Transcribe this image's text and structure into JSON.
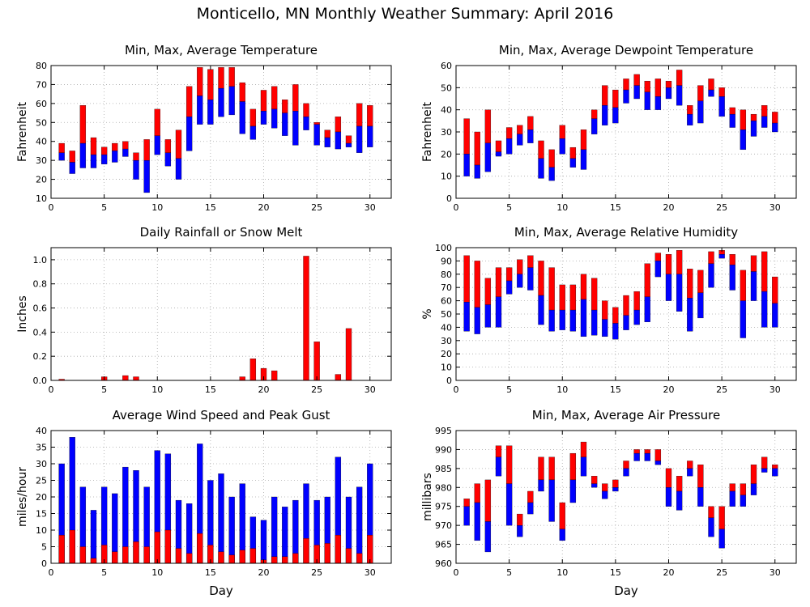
{
  "page": {
    "title": "Monticello, MN Monthly Weather Summary: April 2016"
  },
  "colors": {
    "upper": "#ff0000",
    "lower": "#0000ff",
    "grid": "#aaaaaa",
    "axis": "#000000"
  },
  "chart_data": [
    {
      "id": "temperature",
      "type": "bar",
      "style": "range",
      "title": "Min, Max, Average Temperature",
      "xlabel": "",
      "ylabel": "Fahrenheit",
      "xlim": [
        0,
        32
      ],
      "ylim": [
        10,
        80
      ],
      "xticks": [
        0,
        5,
        10,
        15,
        20,
        25,
        30
      ],
      "yticks": [
        10,
        20,
        30,
        40,
        50,
        60,
        70,
        80
      ],
      "grid": true,
      "x": [
        1,
        2,
        3,
        4,
        5,
        6,
        7,
        8,
        9,
        10,
        11,
        12,
        13,
        14,
        15,
        16,
        17,
        18,
        19,
        20,
        21,
        22,
        23,
        24,
        25,
        26,
        27,
        28,
        29,
        30
      ],
      "min": [
        30,
        23,
        26,
        26,
        28,
        29,
        32,
        20,
        13,
        33,
        27,
        20,
        35,
        49,
        49,
        53,
        54,
        44,
        41,
        49,
        47,
        43,
        38,
        46,
        38,
        37,
        36,
        37,
        34,
        37
      ],
      "avg": [
        34,
        29,
        39,
        33,
        33,
        35,
        36,
        30,
        30,
        43,
        34,
        31,
        53,
        64,
        62,
        68,
        69,
        61,
        48,
        56,
        57,
        55,
        56,
        53,
        49,
        42,
        45,
        39,
        48,
        48
      ],
      "max": [
        39,
        35,
        59,
        42,
        37,
        39,
        40,
        34,
        41,
        57,
        41,
        46,
        69,
        79,
        78,
        79,
        79,
        71,
        57,
        67,
        69,
        62,
        70,
        60,
        50,
        46,
        53,
        43,
        60,
        59
      ]
    },
    {
      "id": "dewpoint",
      "type": "bar",
      "style": "range",
      "title": "Min, Max, Average Dewpoint Temperature",
      "xlabel": "",
      "ylabel": "Fahrenheit",
      "xlim": [
        0,
        32
      ],
      "ylim": [
        0,
        60
      ],
      "xticks": [
        0,
        5,
        10,
        15,
        20,
        25,
        30
      ],
      "yticks": [
        0,
        10,
        20,
        30,
        40,
        50,
        60
      ],
      "grid": true,
      "x": [
        1,
        2,
        3,
        4,
        5,
        6,
        7,
        8,
        9,
        10,
        11,
        12,
        13,
        14,
        15,
        16,
        17,
        18,
        19,
        20,
        21,
        22,
        23,
        24,
        25,
        26,
        27,
        28,
        29,
        30
      ],
      "min": [
        10,
        9,
        12,
        19,
        20,
        24,
        25,
        9,
        8,
        20,
        14,
        13,
        29,
        33,
        34,
        43,
        45,
        40,
        40,
        45,
        42,
        33,
        34,
        46,
        37,
        32,
        22,
        28,
        32,
        30
      ],
      "avg": [
        20,
        15,
        25,
        21,
        27,
        29,
        31,
        18,
        14,
        27,
        18,
        22,
        36,
        42,
        41,
        49,
        51,
        48,
        46,
        50,
        51,
        38,
        44,
        49,
        46,
        38,
        31,
        35,
        37,
        34
      ],
      "max": [
        36,
        30,
        40,
        26,
        32,
        33,
        37,
        26,
        22,
        33,
        23,
        31,
        40,
        51,
        49,
        54,
        56,
        53,
        54,
        53,
        58,
        42,
        51,
        54,
        50,
        41,
        40,
        38,
        42,
        39
      ]
    },
    {
      "id": "rainfall",
      "type": "bar",
      "style": "single",
      "title": "Daily Rainfall or Snow Melt",
      "xlabel": "",
      "ylabel": "Inches",
      "xlim": [
        0,
        32
      ],
      "ylim": [
        0,
        1.1
      ],
      "xticks": [
        0,
        5,
        10,
        15,
        20,
        25,
        30
      ],
      "yticks": [
        0,
        0.2,
        0.4,
        0.6,
        0.8,
        1
      ],
      "ytick_labels": [
        "0.0",
        "0.2",
        "0.4",
        "0.6",
        "0.8",
        "1.0"
      ],
      "grid": true,
      "x": [
        1,
        2,
        3,
        4,
        5,
        6,
        7,
        8,
        9,
        10,
        11,
        12,
        13,
        14,
        15,
        16,
        17,
        18,
        19,
        20,
        21,
        22,
        23,
        24,
        25,
        26,
        27,
        28,
        29,
        30
      ],
      "values": [
        0.01,
        0,
        0,
        0,
        0.03,
        0,
        0.04,
        0.03,
        0,
        0,
        0,
        0,
        0,
        0,
        0,
        0,
        0,
        0.03,
        0.18,
        0.1,
        0.08,
        0,
        0,
        1.03,
        0.32,
        0,
        0.05,
        0.43,
        0,
        0
      ]
    },
    {
      "id": "humidity",
      "type": "bar",
      "style": "range",
      "title": "Min, Max, Average Relative Humidity",
      "xlabel": "",
      "ylabel": "%",
      "xlim": [
        0,
        32
      ],
      "ylim": [
        0,
        100
      ],
      "xticks": [
        0,
        5,
        10,
        15,
        20,
        25,
        30
      ],
      "yticks": [
        0,
        10,
        20,
        30,
        40,
        50,
        60,
        70,
        80,
        90,
        100
      ],
      "grid": true,
      "x": [
        1,
        2,
        3,
        4,
        5,
        6,
        7,
        8,
        9,
        10,
        11,
        12,
        13,
        14,
        15,
        16,
        17,
        18,
        19,
        20,
        21,
        22,
        23,
        24,
        25,
        26,
        27,
        28,
        29,
        30
      ],
      "min": [
        37,
        35,
        40,
        40,
        65,
        70,
        68,
        42,
        37,
        38,
        37,
        33,
        34,
        33,
        31,
        38,
        42,
        44,
        78,
        60,
        52,
        37,
        47,
        70,
        92,
        68,
        32,
        60,
        40,
        40
      ],
      "avg": [
        59,
        55,
        57,
        63,
        75,
        80,
        85,
        64,
        53,
        53,
        53,
        61,
        53,
        46,
        43,
        49,
        53,
        63,
        90,
        80,
        80,
        62,
        66,
        88,
        95,
        87,
        60,
        82,
        67,
        58
      ],
      "max": [
        94,
        90,
        77,
        85,
        85,
        91,
        94,
        90,
        85,
        72,
        72,
        80,
        77,
        60,
        55,
        64,
        67,
        88,
        96,
        95,
        98,
        84,
        83,
        97,
        98,
        95,
        83,
        94,
        97,
        78
      ]
    },
    {
      "id": "wind",
      "type": "bar",
      "style": "wind",
      "title": "Average Wind Speed and Peak Gust",
      "xlabel": "Day",
      "ylabel": "miles/hour",
      "xlim": [
        0,
        32
      ],
      "ylim": [
        0,
        40
      ],
      "xticks": [
        0,
        5,
        10,
        15,
        20,
        25,
        30
      ],
      "yticks": [
        0,
        5,
        10,
        15,
        20,
        25,
        30,
        35,
        40
      ],
      "grid": true,
      "x": [
        1,
        2,
        3,
        4,
        5,
        6,
        7,
        8,
        9,
        10,
        11,
        12,
        13,
        14,
        15,
        16,
        17,
        18,
        19,
        20,
        21,
        22,
        23,
        24,
        25,
        26,
        27,
        28,
        29,
        30
      ],
      "average_speed": [
        8.5,
        10,
        5,
        1.5,
        5.5,
        3.5,
        5,
        6.5,
        5,
        9.5,
        10,
        4.5,
        3,
        9,
        5.5,
        3.5,
        2.5,
        4,
        4.5,
        1,
        2,
        2,
        3,
        7.5,
        5.5,
        6,
        8.5,
        4.5,
        3,
        8.5
      ],
      "peak_gust": [
        30,
        38,
        23,
        16,
        23,
        21,
        29,
        28,
        23,
        34,
        33,
        19,
        18,
        36,
        25,
        27,
        20,
        24,
        14,
        13,
        20,
        17,
        19,
        24,
        19,
        20,
        32,
        20,
        23,
        30
      ]
    },
    {
      "id": "pressure",
      "type": "bar",
      "style": "range",
      "title": "Min, Max, Average Air Pressure",
      "xlabel": "Day",
      "ylabel": "millibars",
      "xlim": [
        0,
        32
      ],
      "ylim": [
        960,
        995
      ],
      "xticks": [
        0,
        5,
        10,
        15,
        20,
        25,
        30
      ],
      "yticks": [
        960,
        965,
        970,
        975,
        980,
        985,
        990,
        995
      ],
      "grid": true,
      "x": [
        1,
        2,
        3,
        4,
        5,
        6,
        7,
        8,
        9,
        10,
        11,
        12,
        13,
        14,
        15,
        16,
        17,
        18,
        19,
        20,
        21,
        22,
        23,
        24,
        25,
        26,
        27,
        28,
        29,
        30
      ],
      "min": [
        970,
        966,
        963,
        983,
        970,
        967,
        973,
        979,
        971,
        966,
        976,
        983,
        980,
        977,
        979,
        983,
        987,
        987,
        986,
        975,
        974,
        983,
        975,
        967,
        964,
        975,
        975,
        978,
        984,
        983
      ],
      "avg": [
        975,
        976,
        971,
        988,
        981,
        970,
        976,
        982,
        982,
        969,
        982,
        988,
        981,
        979,
        980,
        985,
        989,
        989,
        987,
        980,
        979,
        985,
        980,
        972,
        969,
        979,
        978,
        981,
        985,
        985
      ],
      "max": [
        977,
        981,
        982,
        991,
        991,
        973,
        979,
        988,
        988,
        976,
        989,
        992,
        983,
        981,
        982,
        987,
        990,
        990,
        990,
        985,
        983,
        987,
        986,
        975,
        975,
        981,
        981,
        986,
        988,
        986
      ]
    }
  ]
}
